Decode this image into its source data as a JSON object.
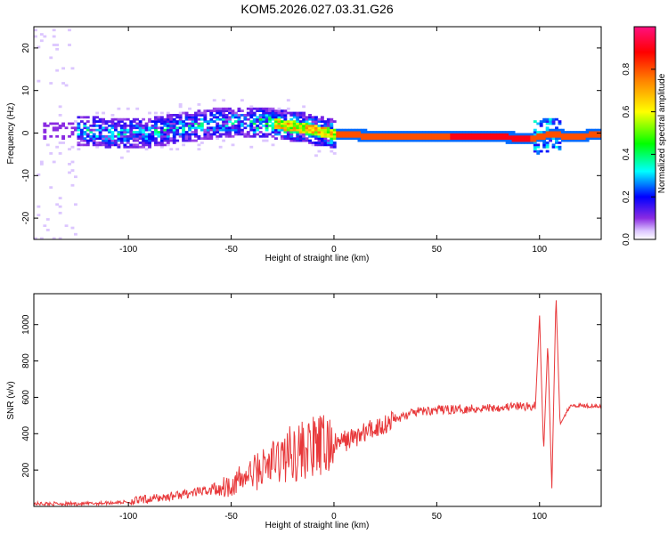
{
  "figure": {
    "title": "KOM5.2026.027.03.31.G26"
  },
  "chart_data": [
    {
      "type": "heatmap",
      "xlabel": "Height of straight line (km)",
      "ylabel": "Frequency (Hz)",
      "xlim": [
        -146,
        130
      ],
      "ylim": [
        -25,
        25
      ],
      "xticks": [
        -100,
        -50,
        0,
        50,
        100
      ],
      "yticks": [
        -20,
        -10,
        0,
        10,
        20
      ],
      "colorbar": {
        "label": "Normalized spectral amplitude",
        "range": [
          0,
          1
        ],
        "ticks": [
          0.0,
          0.2,
          0.4,
          0.6,
          0.8
        ]
      },
      "ridge": [
        {
          "x": -146,
          "freq": 0.0
        },
        {
          "x": -120,
          "freq": 0.5
        },
        {
          "x": -110,
          "freq": -0.5
        },
        {
          "x": -90,
          "freq": 0.0
        },
        {
          "x": -75,
          "freq": 1.0
        },
        {
          "x": -60,
          "freq": 2.0
        },
        {
          "x": -45,
          "freq": 2.5
        },
        {
          "x": -30,
          "freq": 2.0
        },
        {
          "x": -15,
          "freq": 1.0
        },
        {
          "x": 0,
          "freq": -0.5
        },
        {
          "x": 25,
          "freq": -1.0
        },
        {
          "x": 50,
          "freq": -1.0
        },
        {
          "x": 75,
          "freq": -1.0
        },
        {
          "x": 95,
          "freq": -1.5
        },
        {
          "x": 105,
          "freq": -0.5
        },
        {
          "x": 115,
          "freq": -1.0
        },
        {
          "x": 130,
          "freq": -0.5
        }
      ]
    },
    {
      "type": "line",
      "xlabel": "Height of straight line (km)",
      "ylabel": "SNR (v/v)",
      "xlim": [
        -146,
        130
      ],
      "ylim": [
        0,
        1170
      ],
      "xticks": [
        -100,
        -50,
        0,
        50,
        100
      ],
      "yticks": [
        200,
        400,
        600,
        800,
        1000
      ],
      "series": [
        {
          "color": "#e8383a",
          "x": [
            -146,
            -120,
            -100,
            -80,
            -60,
            -50,
            -40,
            -30,
            -20,
            -10,
            0,
            10,
            20,
            30,
            40,
            50,
            60,
            70,
            80,
            90,
            98,
            100,
            102,
            104,
            106,
            108,
            110,
            115,
            120,
            130
          ],
          "y": [
            15,
            15,
            25,
            55,
            90,
            120,
            180,
            240,
            300,
            320,
            340,
            380,
            430,
            480,
            520,
            530,
            535,
            540,
            545,
            550,
            550,
            1050,
            300,
            900,
            100,
            1170,
            450,
            560,
            555,
            555
          ]
        }
      ]
    }
  ]
}
